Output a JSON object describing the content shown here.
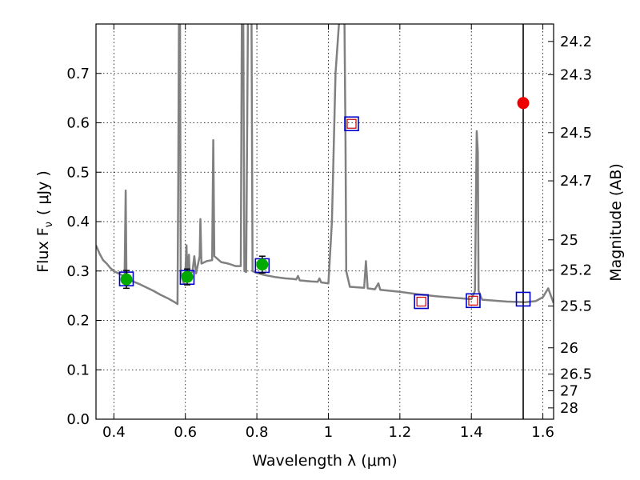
{
  "chart_data": {
    "type": "line",
    "xlabel": "Wavelength  λ (μm)",
    "ylabel": "Flux  F",
    "ylabel_sub": "ν",
    "ylabel_units": "( μJy )",
    "y2label": "Magnitude (AB)",
    "xlim": [
      0.35,
      1.63
    ],
    "ylim": [
      0.0,
      0.8
    ],
    "x_ticks": [
      0.4,
      0.6,
      0.8,
      1.0,
      1.2,
      1.4,
      1.6
    ],
    "x_tick_labels": [
      "0.4",
      "0.6",
      "0.8",
      "1",
      "1.2",
      "1.4",
      "1.6"
    ],
    "y_ticks": [
      0.0,
      0.1,
      0.2,
      0.3,
      0.4,
      0.5,
      0.6,
      0.7
    ],
    "y_tick_labels": [
      "0.0",
      "0.1",
      "0.2",
      "0.3",
      "0.4",
      "0.5",
      "0.6",
      "0.7"
    ],
    "y2_ticks": [
      {
        "label": "24.2",
        "flux": 0.7647
      },
      {
        "label": "24.3",
        "flux": 0.6974
      },
      {
        "label": "24.5",
        "flux": 0.5801
      },
      {
        "label": "24.7",
        "flux": 0.4825
      },
      {
        "label": "25",
        "flux": 0.3631
      },
      {
        "label": "25.2",
        "flux": 0.302
      },
      {
        "label": "25.5",
        "flux": 0.2291
      },
      {
        "label": "26",
        "flux": 0.1445
      },
      {
        "label": "26.5",
        "flux": 0.0912
      },
      {
        "label": "27",
        "flux": 0.0575
      },
      {
        "label": "28",
        "flux": 0.0229
      }
    ],
    "grid": true,
    "vertical_line_x": 1.545,
    "series": [
      {
        "role": "model-sed",
        "color": "#808080",
        "points": [
          [
            0.35,
            0.352
          ],
          [
            0.36,
            0.335
          ],
          [
            0.37,
            0.322
          ],
          [
            0.38,
            0.315
          ],
          [
            0.39,
            0.306
          ],
          [
            0.4,
            0.3
          ],
          [
            0.41,
            0.296
          ],
          [
            0.42,
            0.293
          ],
          [
            0.425,
            0.29
          ],
          [
            0.428,
            0.287
          ],
          [
            0.43,
            0.292
          ],
          [
            0.433,
            0.463
          ],
          [
            0.435,
            0.3
          ],
          [
            0.438,
            0.287
          ],
          [
            0.45,
            0.28
          ],
          [
            0.47,
            0.274
          ],
          [
            0.49,
            0.267
          ],
          [
            0.51,
            0.26
          ],
          [
            0.53,
            0.252
          ],
          [
            0.55,
            0.245
          ],
          [
            0.57,
            0.237
          ],
          [
            0.578,
            0.233
          ],
          [
            0.58,
            0.48
          ],
          [
            0.582,
            0.805
          ],
          [
            0.585,
            0.805
          ],
          [
            0.587,
            0.3
          ],
          [
            0.59,
            0.29
          ],
          [
            0.595,
            0.275
          ],
          [
            0.6,
            0.295
          ],
          [
            0.603,
            0.352
          ],
          [
            0.605,
            0.3
          ],
          [
            0.61,
            0.333
          ],
          [
            0.612,
            0.29
          ],
          [
            0.62,
            0.3
          ],
          [
            0.625,
            0.33
          ],
          [
            0.63,
            0.295
          ],
          [
            0.64,
            0.33
          ],
          [
            0.642,
            0.405
          ],
          [
            0.645,
            0.315
          ],
          [
            0.66,
            0.32
          ],
          [
            0.675,
            0.322
          ],
          [
            0.678,
            0.565
          ],
          [
            0.681,
            0.33
          ],
          [
            0.7,
            0.318
          ],
          [
            0.72,
            0.315
          ],
          [
            0.74,
            0.31
          ],
          [
            0.755,
            0.31
          ],
          [
            0.758,
            0.805
          ],
          [
            0.762,
            0.805
          ],
          [
            0.765,
            0.3
          ],
          [
            0.77,
            0.298
          ],
          [
            0.775,
            0.805
          ],
          [
            0.785,
            0.805
          ],
          [
            0.788,
            0.3
          ],
          [
            0.8,
            0.296
          ],
          [
            0.82,
            0.292
          ],
          [
            0.85,
            0.288
          ],
          [
            0.88,
            0.285
          ],
          [
            0.9,
            0.284
          ],
          [
            0.91,
            0.283
          ],
          [
            0.915,
            0.29
          ],
          [
            0.92,
            0.281
          ],
          [
            0.95,
            0.279
          ],
          [
            0.97,
            0.278
          ],
          [
            0.975,
            0.285
          ],
          [
            0.98,
            0.277
          ],
          [
            1.0,
            0.275
          ],
          [
            1.01,
            0.4
          ],
          [
            1.02,
            0.7
          ],
          [
            1.03,
            0.805
          ],
          [
            1.045,
            0.805
          ],
          [
            1.048,
            0.56
          ],
          [
            1.05,
            0.3
          ],
          [
            1.06,
            0.268
          ],
          [
            1.08,
            0.267
          ],
          [
            1.1,
            0.266
          ],
          [
            1.105,
            0.32
          ],
          [
            1.11,
            0.265
          ],
          [
            1.13,
            0.263
          ],
          [
            1.14,
            0.275
          ],
          [
            1.145,
            0.262
          ],
          [
            1.2,
            0.258
          ],
          [
            1.25,
            0.253
          ],
          [
            1.3,
            0.249
          ],
          [
            1.35,
            0.246
          ],
          [
            1.38,
            0.244
          ],
          [
            1.4,
            0.243
          ],
          [
            1.41,
            0.26
          ],
          [
            1.415,
            0.583
          ],
          [
            1.418,
            0.54
          ],
          [
            1.42,
            0.26
          ],
          [
            1.43,
            0.242
          ],
          [
            1.5,
            0.238
          ],
          [
            1.55,
            0.237
          ],
          [
            1.58,
            0.239
          ],
          [
            1.6,
            0.247
          ],
          [
            1.615,
            0.265
          ],
          [
            1.63,
            0.235
          ]
        ]
      },
      {
        "role": "model-photometry",
        "marker": "open-square",
        "color": "#0000cc",
        "points": [
          [
            0.435,
            0.284
          ],
          [
            0.605,
            0.287
          ],
          [
            0.815,
            0.311
          ],
          [
            1.065,
            0.598
          ],
          [
            1.26,
            0.238
          ],
          [
            1.405,
            0.24
          ],
          [
            1.545,
            0.243
          ]
        ]
      },
      {
        "role": "inner-open-squares",
        "marker": "open-square-small",
        "color": "#cc0000",
        "points": [
          [
            1.065,
            0.598
          ],
          [
            1.26,
            0.238
          ],
          [
            1.405,
            0.24
          ]
        ]
      },
      {
        "role": "observed-photometry",
        "marker": "filled-circle",
        "color": "#00aa00",
        "points": [
          [
            0.435,
            0.283
          ],
          [
            0.605,
            0.288
          ],
          [
            0.815,
            0.313
          ]
        ],
        "errors": [
          0.018,
          0.016,
          0.017
        ]
      },
      {
        "role": "highlight-point",
        "marker": "filled-circle",
        "color": "#ee0000",
        "points": [
          [
            1.545,
            0.64
          ]
        ]
      }
    ]
  }
}
